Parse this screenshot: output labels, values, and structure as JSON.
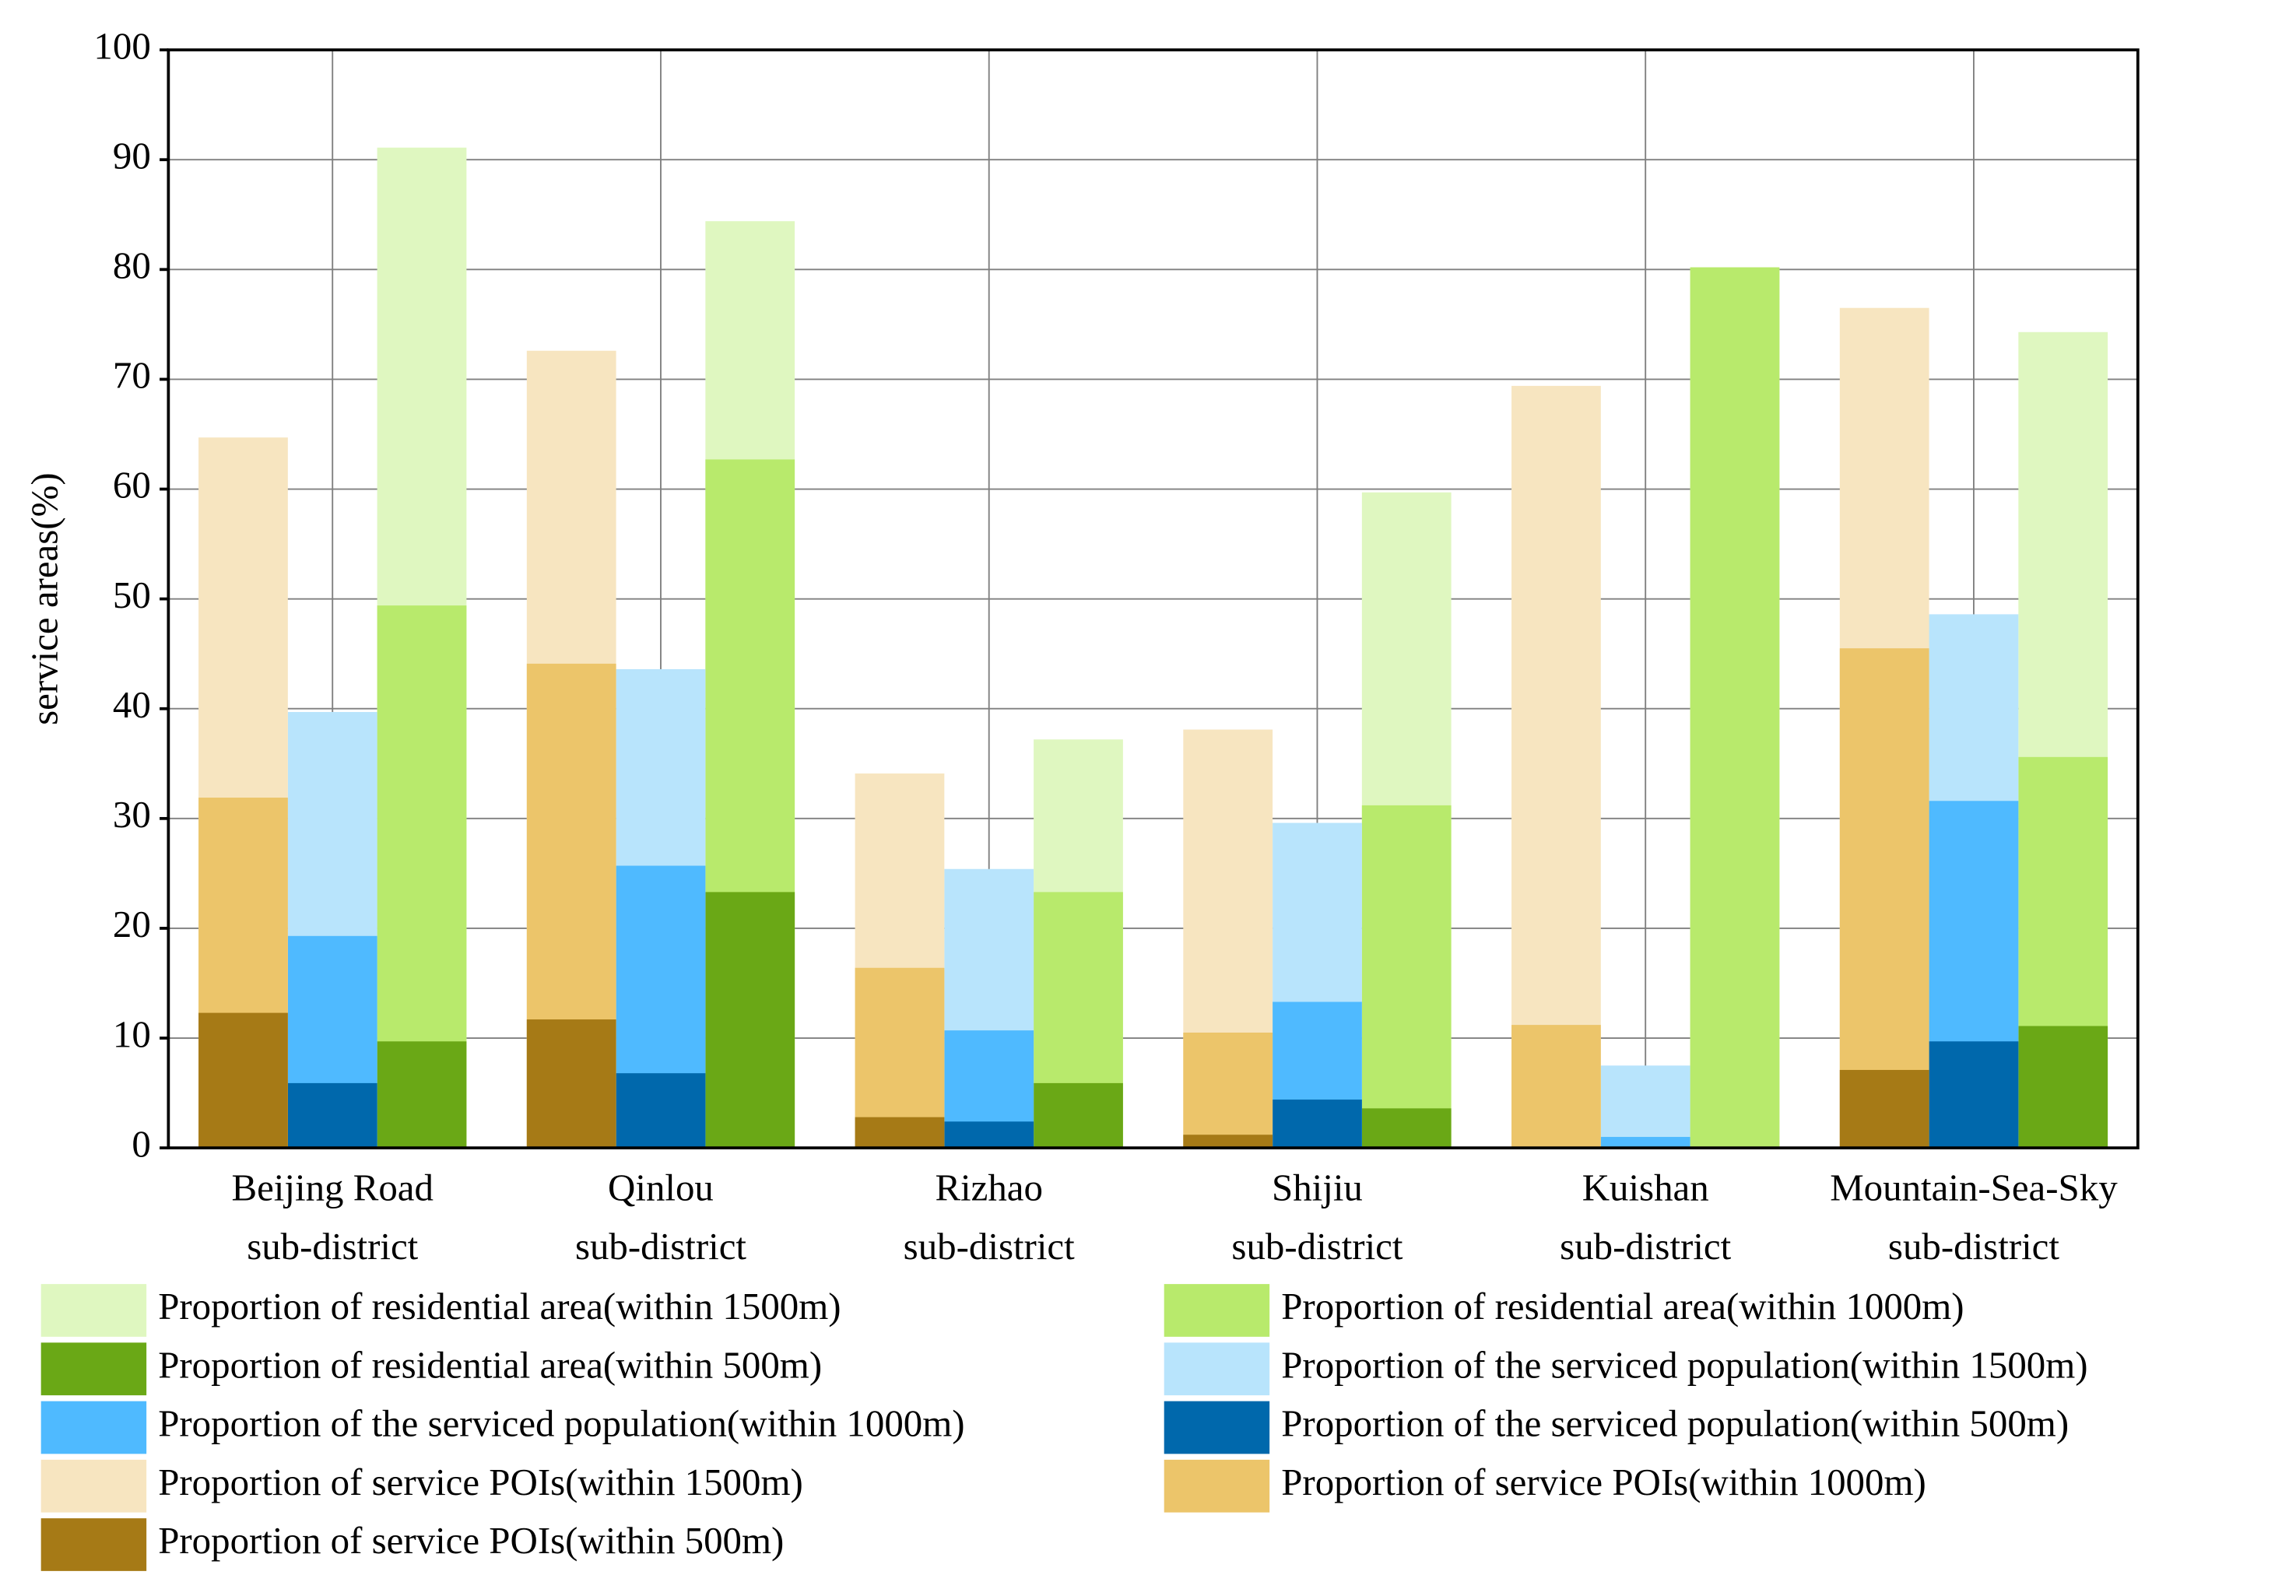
{
  "chart_data": {
    "type": "bar",
    "mode": "overlap",
    "ylabel": "service areas(%)",
    "categories": [
      "Beijing Road\nsub-district",
      "Qinlou\nsub-district",
      "Rizhao\nsub-district",
      "Shijiu\nsub-district",
      "Kuishan\nsub-district",
      "Mountain-Sea-Sky\nsub-district"
    ],
    "series": [
      {
        "name": "Proportion of residential area(within 1500m)",
        "color": "#dff7c0",
        "values": [
          91.1,
          84.4,
          37.2,
          59.7,
          80.2,
          74.3
        ]
      },
      {
        "name": "Proportion of residential area(within 1000m)",
        "color": "#b8ea6c",
        "values": [
          49.4,
          62.7,
          23.3,
          31.2,
          80.2,
          35.6
        ]
      },
      {
        "name": "Proportion of residential area(within 500m)",
        "color": "#6aa816",
        "values": [
          9.7,
          23.3,
          5.9,
          3.6,
          0,
          11.1
        ]
      },
      {
        "name": "Proportion of the serviced population(within 1500m)",
        "color": "#b8e4fc",
        "values": [
          39.7,
          43.6,
          25.4,
          29.6,
          7.5,
          48.6
        ]
      },
      {
        "name": "Proportion of the serviced population(within 1000m)",
        "color": "#4fbaff",
        "values": [
          19.3,
          25.7,
          10.7,
          13.3,
          1.0,
          31.6
        ]
      },
      {
        "name": "Proportion of the serviced population(within 500m)",
        "color": "#0068ac",
        "values": [
          5.9,
          6.8,
          2.4,
          4.4,
          0,
          9.7
        ]
      },
      {
        "name": "Proportion of service POIs(within 1500m)",
        "color": "#f7e5c0",
        "values": [
          64.7,
          72.6,
          34.1,
          38.1,
          69.4,
          76.5
        ]
      },
      {
        "name": "Proportion of service POIs(within 1000m)",
        "color": "#ecc56a",
        "values": [
          31.9,
          44.1,
          16.4,
          10.5,
          11.2,
          45.5
        ]
      },
      {
        "name": "Proportion of service POIs(within 500m)",
        "color": "#a67a16",
        "values": [
          12.3,
          11.7,
          2.8,
          1.2,
          0,
          7.1
        ]
      }
    ],
    "ylim": [
      0,
      100
    ],
    "yticks": [
      0,
      10,
      20,
      30,
      40,
      50,
      60,
      70,
      80,
      90,
      100
    ],
    "grid": true,
    "legend": "bottom"
  }
}
